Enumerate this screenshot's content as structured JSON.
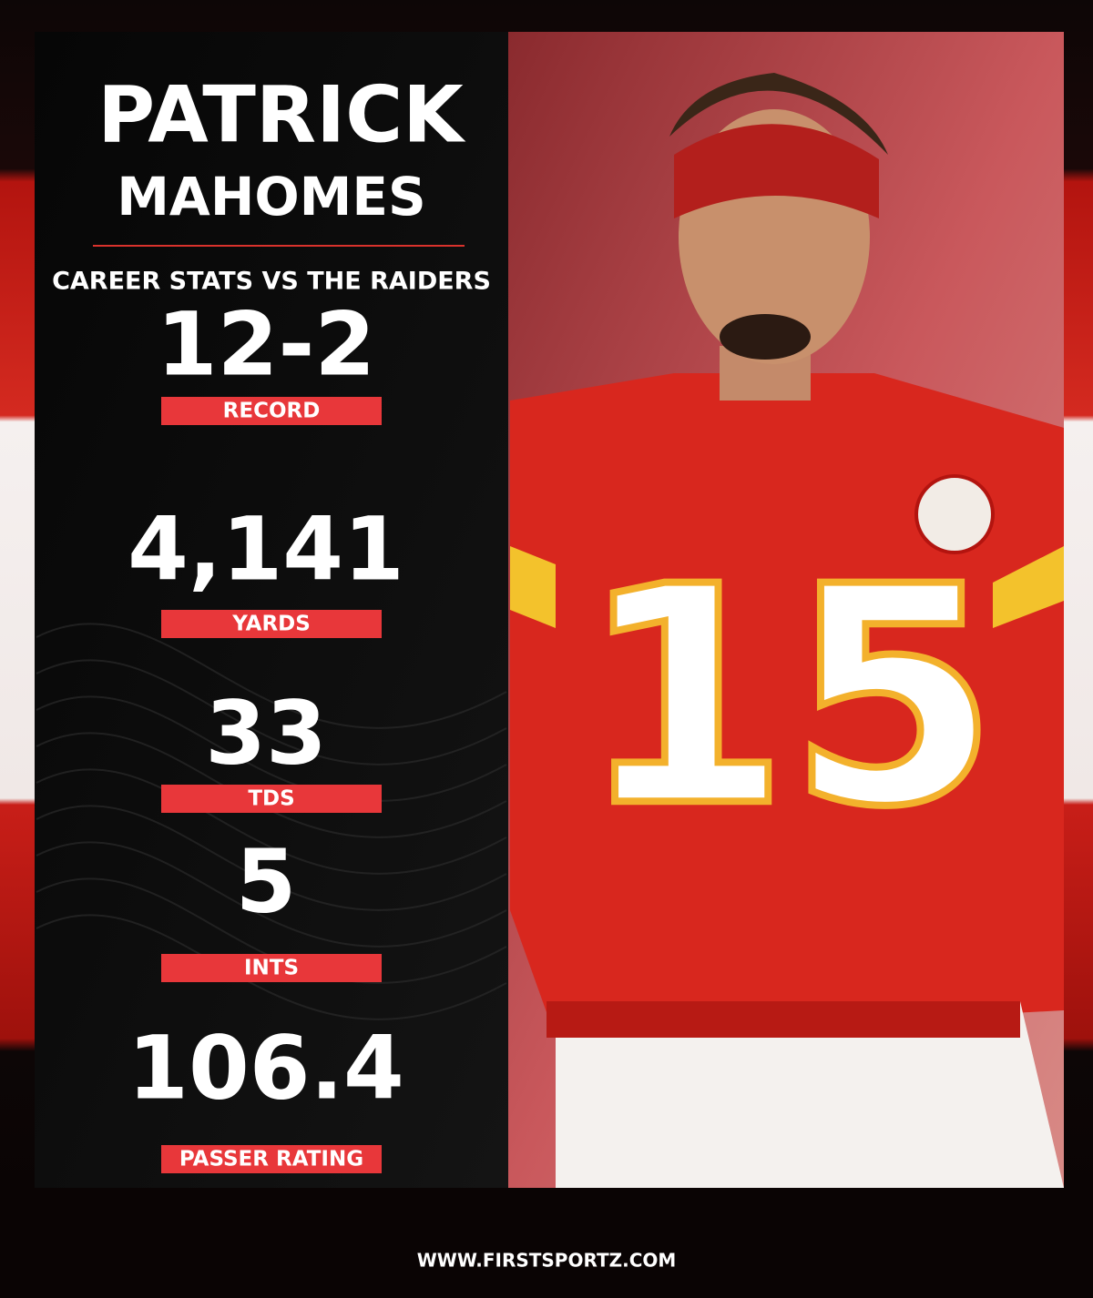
{
  "header": {
    "first_name": "PATRICK",
    "last_name": "MAHOMES",
    "subtitle": "CAREER STATS VS THE RAIDERS"
  },
  "stats": [
    {
      "value": "12-2",
      "label": "RECORD"
    },
    {
      "value": "4,141",
      "label": "YARDS"
    },
    {
      "value": "33",
      "label": "TDS"
    },
    {
      "value": "5",
      "label": "INTS"
    },
    {
      "value": "106.4",
      "label": "PASSER RATING"
    }
  ],
  "photo": {
    "jersey_number": "15"
  },
  "footer": {
    "website": "WWW.FIRSTSPORTZ.COM"
  }
}
